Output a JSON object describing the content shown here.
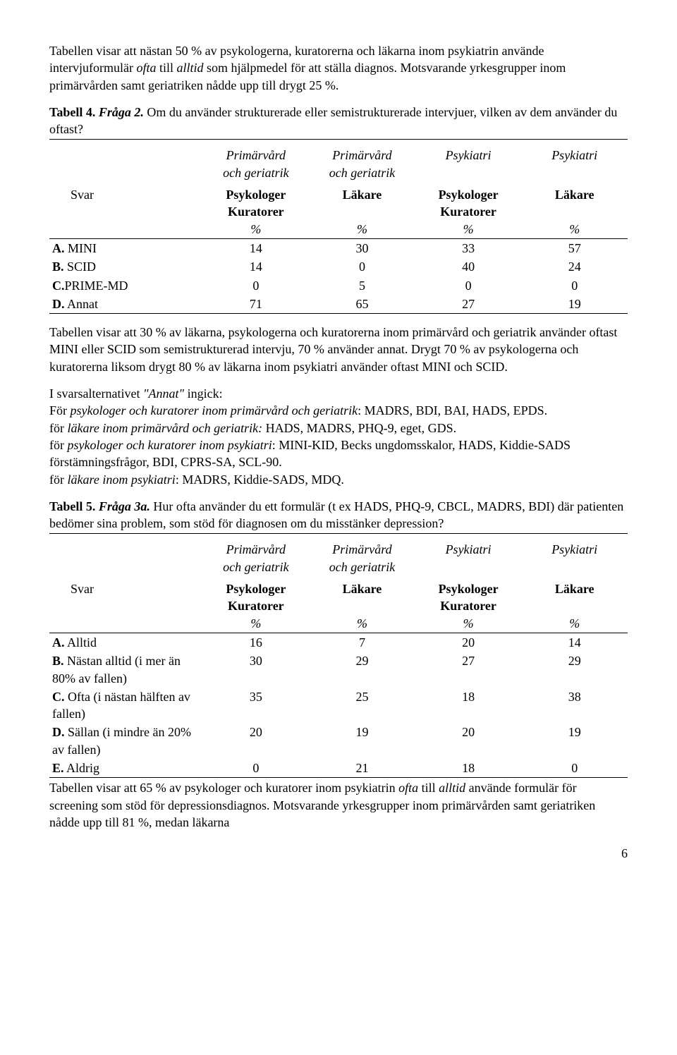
{
  "para1": {
    "pre": "Tabellen visar att nästan 50 % av psykologerna, kuratorerna och läkarna inom psykiatrin använde intervjuformulär ",
    "i1": "ofta",
    "mid": " till ",
    "i2": "alltid",
    "post": " som hjälpmedel för att ställa diagnos. Motsvarande yrkesgrupper inom primärvården samt geriatriken nådde upp till drygt 25 %."
  },
  "tab4caption": {
    "bold1": "Tabell 4.",
    "bolditalic": " Fråga 2.",
    "rest": " Om du använder strukturerade eller semistrukturerade intervjuer, vilken av dem använder du oftast?"
  },
  "colheads": {
    "c1_l1": "Primärvård",
    "c1_l2": "och geriatrik",
    "c2_l1": "Primärvård",
    "c2_l2": "och geriatrik",
    "c3": "Psykiatri",
    "c4": "Psykiatri",
    "svar": "Svar",
    "r2c1_l1": "Psykologer",
    "r2c1_l2": "Kuratorer",
    "r2c2": "Läkare",
    "r2c3_l1": "Psykologer",
    "r2c3_l2": "Kuratorer",
    "r2c4": "Läkare",
    "pct": "%"
  },
  "taba_rows": [
    {
      "b": "A.",
      "label": " MINI",
      "v": [
        "14",
        "30",
        "33",
        "57"
      ]
    },
    {
      "b": "B.",
      "label": " SCID",
      "v": [
        "14",
        "0",
        "40",
        "24"
      ]
    },
    {
      "b": "C.",
      "label": "PRIME-MD",
      "v": [
        "0",
        "5",
        "0",
        "0"
      ]
    },
    {
      "b": "D.",
      "label": " Annat",
      "v": [
        "71",
        "65",
        "27",
        "19"
      ]
    }
  ],
  "para2": "Tabellen visar att 30 % av läkarna, psykologerna och kuratorerna inom primärvård och geriatrik använder oftast MINI eller SCID som semistrukturerad intervju, 70 % använder annat. Drygt 70 % av psykologerna och kuratorerna liksom drygt 80 % av läkarna inom psykiatri använder oftast MINI och SCID.",
  "para3": {
    "l1a": "I svarsalternativet ",
    "l1i": "\"Annat\"",
    "l1b": " ingick:",
    "l2a": "För ",
    "l2i": "psykologer och kuratorer inom primärvård och geriatrik",
    "l2b": ": MADRS, BDI, BAI, HADS, EPDS.",
    "l3a": "för ",
    "l3i": "läkare inom primärvård och geriatrik:",
    "l3b": " HADS, MADRS, PHQ-9, eget, GDS.",
    "l4a": "för ",
    "l4i": "psykologer och kuratorer inom psykiatri",
    "l4b": ": MINI-KID, Becks ungdomsskalor, HADS, Kiddie-SADS förstämningsfrågor, BDI, CPRS-SA, SCL-90.",
    "l5a": "för ",
    "l5i": "läkare inom psykiatri",
    "l5b": ": MADRS, Kiddie-SADS, MDQ."
  },
  "tab5caption": {
    "bold1": "Tabell 5.",
    "bolditalic": " Fråga 3a.",
    "rest": " Hur ofta använder du ett formulär (t ex HADS, PHQ-9, CBCL, MADRS, BDI) där patienten bedömer sina problem, som stöd för diagnosen om du misstänker depression?"
  },
  "tabb_rows": [
    {
      "b": "A.",
      "label": " Alltid",
      "v": [
        "16",
        "7",
        "20",
        "14"
      ]
    },
    {
      "b": "B.",
      "label": " Nästan alltid (i mer än 80% av fallen)",
      "v": [
        "30",
        "29",
        "27",
        "29"
      ]
    },
    {
      "b": "C.",
      "label": " Ofta (i nästan hälften av fallen)",
      "v": [
        "35",
        "25",
        "18",
        "38"
      ]
    },
    {
      "b": "D.",
      "label": " Sällan (i mindre än 20% av fallen)",
      "v": [
        "20",
        "19",
        "20",
        "19"
      ]
    },
    {
      "b": "E.",
      "label": " Aldrig",
      "v": [
        "0",
        "21",
        "18",
        "0"
      ]
    }
  ],
  "para4": {
    "a": "Tabellen visar att 65 % av psykologer och kuratorer inom psykiatrin ",
    "i1": "ofta",
    "b": " till ",
    "i2": "alltid",
    "c": " använde formulär för screening som stöd för depressionsdiagnos. Motsvarande yrkesgrupper inom primärvården samt geriatriken nådde upp till 81 %, medan läkarna"
  },
  "pageNum": "6"
}
